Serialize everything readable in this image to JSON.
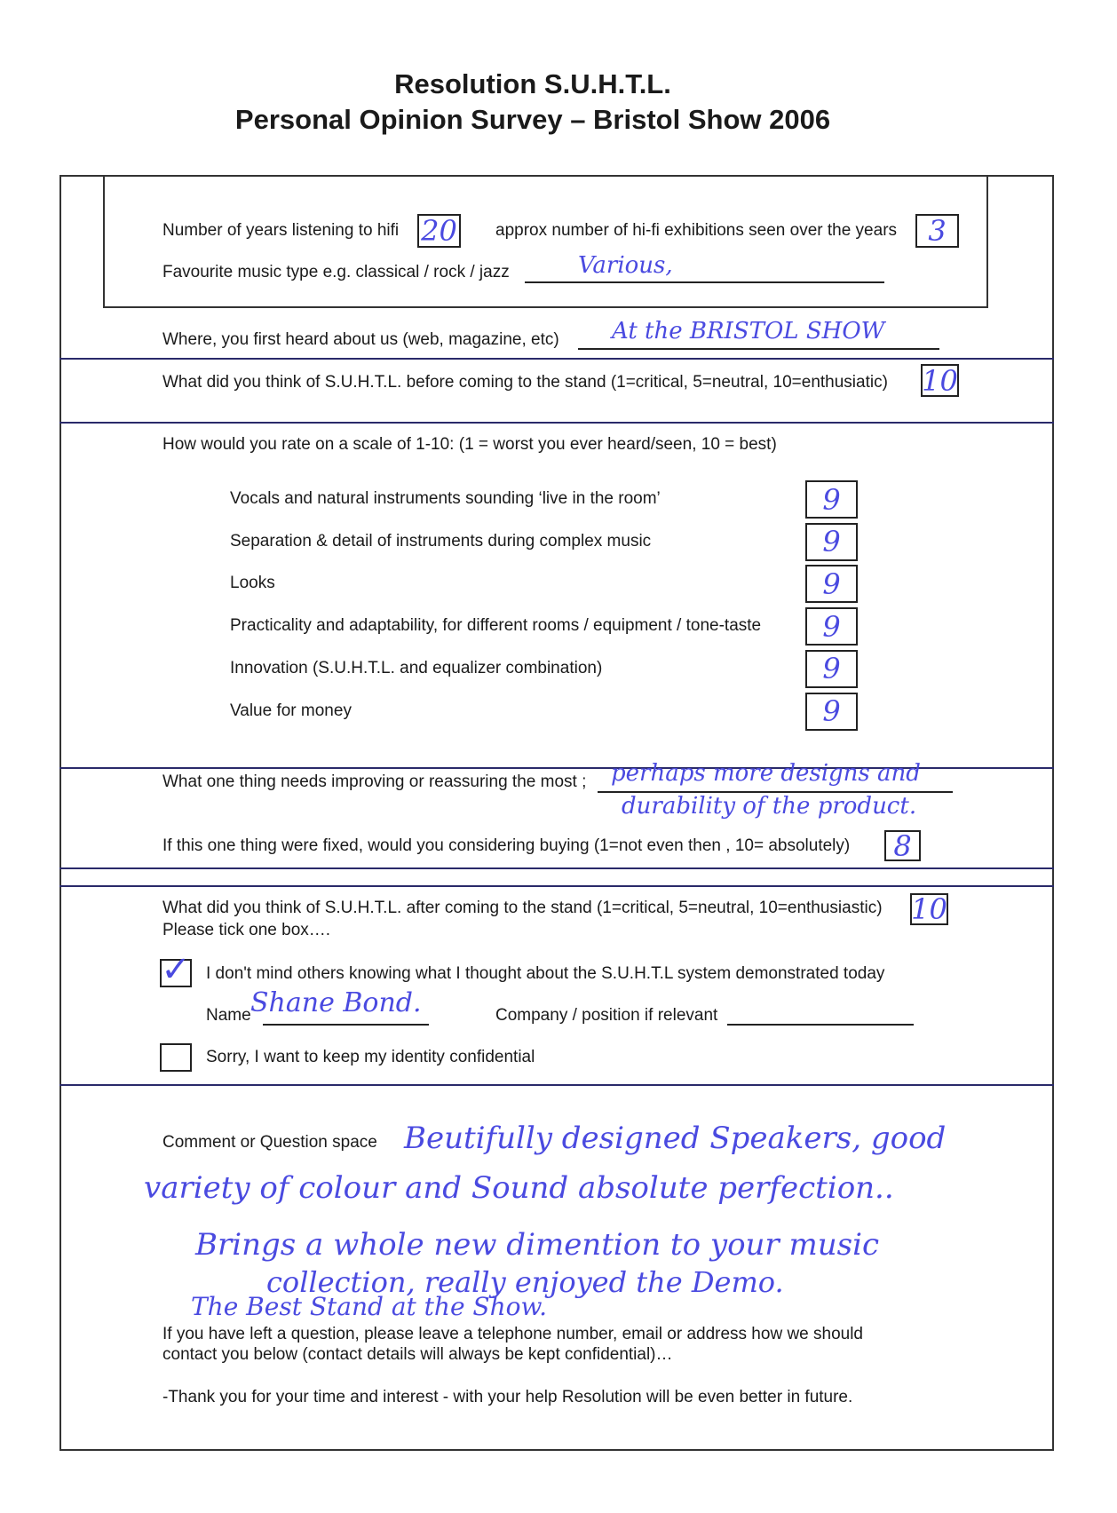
{
  "header": {
    "title_line1": "Resolution S.U.H.T.L.",
    "title_line2": "Personal Opinion Survey – Bristol Show 2006"
  },
  "intro": {
    "years_label": "Number of years listening to hifi",
    "years_value": "20",
    "exhibitions_label": "approx number of hi-fi exhibitions seen over the years",
    "exhibitions_value": "3",
    "music_label": "Favourite music type e.g. classical / rock / jazz",
    "music_value": "Various,"
  },
  "heard": {
    "label": "Where, you first heard about us (web, magazine, etc)",
    "value": "At the BRISTOL SHOW"
  },
  "before": {
    "label": "What did you think of S.U.H.T.L. before coming to the stand (1=critical, 5=neutral, 10=enthusiatic)",
    "value": "10"
  },
  "ratings": {
    "label": "How would you rate on a scale of 1-10: (1 = worst you ever heard/seen, 10 = best)",
    "items": [
      {
        "label": "Vocals and natural instruments sounding ‘live in the room’",
        "value": "9"
      },
      {
        "label": "Separation & detail of instruments during complex music",
        "value": "9"
      },
      {
        "label": "Looks",
        "value": "9"
      },
      {
        "label": "Practicality and adaptability, for different rooms / equipment / tone-taste",
        "value": "9"
      },
      {
        "label": "Innovation (S.U.H.T.L. and equalizer combination)",
        "value": "9"
      },
      {
        "label": "Value for money",
        "value": "9"
      }
    ]
  },
  "improve": {
    "label": "What one thing needs improving or reassuring the most ;",
    "value_line1": "perhaps more designs and",
    "value_line2": "durability of the product."
  },
  "buy": {
    "label": "If this one thing were fixed, would you considering buying  (1=not even then , 10= absolutely)",
    "value": "8"
  },
  "after": {
    "label": "What did you think of S.U.H.T.L. after coming to the stand (1=critical, 5=neutral, 10=enthusiastic)",
    "value": "10",
    "tick_label": "Please tick one box…."
  },
  "consent": {
    "public_label": "I don't mind others knowing what I thought about the S.U.H.T.L system demonstrated today",
    "public_checked": true,
    "name_label": "Name",
    "name_value": "Shane Bond.",
    "company_label": "Company / position if relevant",
    "company_value": "",
    "confidential_label": "Sorry, I want to keep my identity confidential",
    "confidential_checked": false
  },
  "comment": {
    "label": "Comment or Question space",
    "lines": [
      "Beutifully designed Speakers, good",
      "variety of colour and Sound absolute perfection..",
      "Brings a whole new dimention to your music",
      "collection, really enjoyed the Demo.",
      "The Best Stand at the Show."
    ]
  },
  "footer": {
    "contact_line1": "If you have left a question, please leave a telephone number, email or address how we should",
    "contact_line2": "contact you below (contact details will always be kept confidential)…",
    "thanks": "-Thank you for your time and interest - with your help Resolution will be even better in future."
  },
  "colors": {
    "ink": "#4a4ae0",
    "rule": "#2a2a6a"
  }
}
